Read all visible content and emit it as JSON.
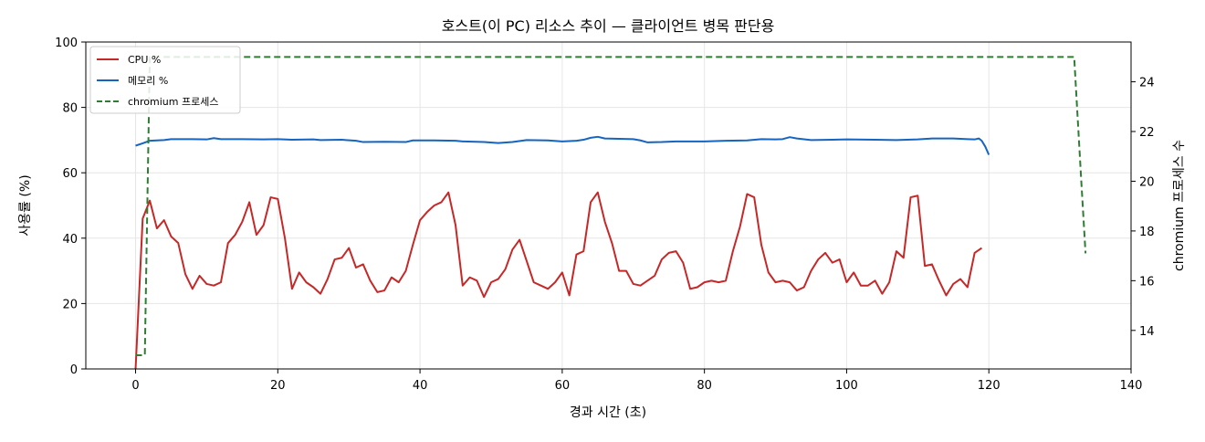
{
  "chart_data": {
    "type": "line",
    "title": "호스트(이 PC) 리소스 추이 — 클라이언트 병목 판단용",
    "xlabel": "경과 시간 (초)",
    "ylabel": "사용률 (%)",
    "y2label": "chromium 프로세스 수",
    "xlim": [
      -7,
      140
    ],
    "ylim": [
      0,
      100
    ],
    "y2lim": [
      12.45,
      25.6
    ],
    "xticks": [
      "0",
      "20",
      "40",
      "60",
      "80",
      "100",
      "120",
      "140"
    ],
    "yticks": [
      "0",
      "20",
      "40",
      "60",
      "80",
      "100"
    ],
    "y2ticks": [
      "14",
      "16",
      "18",
      "20",
      "22",
      "24"
    ],
    "grid": true,
    "legend_position": "top-left",
    "series": [
      {
        "name": "CPU %",
        "axis": "left",
        "color": "#c62828",
        "style": "solid",
        "points": [
          [
            0,
            0
          ],
          [
            1,
            46
          ],
          [
            2,
            51.5
          ],
          [
            3,
            43
          ],
          [
            4,
            45.5
          ],
          [
            5,
            40.5
          ],
          [
            6,
            38.5
          ],
          [
            7,
            29
          ],
          [
            8,
            24.5
          ],
          [
            9,
            28.5
          ],
          [
            10,
            26
          ],
          [
            11,
            25.5
          ],
          [
            12,
            26.5
          ],
          [
            13,
            38.5
          ],
          [
            14,
            41
          ],
          [
            15,
            45
          ],
          [
            16,
            51
          ],
          [
            17,
            41
          ],
          [
            18,
            44
          ],
          [
            19,
            52.5
          ],
          [
            20,
            52
          ],
          [
            21,
            40
          ],
          [
            22,
            24.5
          ],
          [
            23,
            29.5
          ],
          [
            24,
            26.5
          ],
          [
            25,
            25
          ],
          [
            26,
            23
          ],
          [
            27,
            27.5
          ],
          [
            28,
            33.5
          ],
          [
            29,
            34
          ],
          [
            30,
            37
          ],
          [
            31,
            31
          ],
          [
            32,
            32
          ],
          [
            33,
            27
          ],
          [
            34,
            23.5
          ],
          [
            35,
            24
          ],
          [
            36,
            28
          ],
          [
            37,
            26.5
          ],
          [
            38,
            30
          ],
          [
            39,
            38
          ],
          [
            40,
            45.5
          ],
          [
            41,
            48
          ],
          [
            42,
            50
          ],
          [
            43,
            51
          ],
          [
            44,
            54
          ],
          [
            45,
            44
          ],
          [
            46,
            25.5
          ],
          [
            47,
            28
          ],
          [
            48,
            27
          ],
          [
            49,
            22
          ],
          [
            50,
            26.5
          ],
          [
            51,
            27.5
          ],
          [
            52,
            30.5
          ],
          [
            53,
            36.5
          ],
          [
            54,
            39.5
          ],
          [
            55,
            33
          ],
          [
            56,
            26.5
          ],
          [
            57,
            25.5
          ],
          [
            58,
            24.5
          ],
          [
            59,
            26.5
          ],
          [
            60,
            29.5
          ],
          [
            61,
            22.5
          ],
          [
            62,
            35
          ],
          [
            63,
            36
          ],
          [
            64,
            51
          ],
          [
            65,
            54
          ],
          [
            66,
            45
          ],
          [
            67,
            38.5
          ],
          [
            68,
            30
          ],
          [
            69,
            30
          ],
          [
            70,
            26
          ],
          [
            71,
            25.5
          ],
          [
            72,
            27
          ],
          [
            73,
            28.5
          ],
          [
            74,
            33.5
          ],
          [
            75,
            35.5
          ],
          [
            76,
            36
          ],
          [
            77,
            32.5
          ],
          [
            78,
            24.5
          ],
          [
            79,
            25
          ],
          [
            80,
            26.5
          ],
          [
            81,
            27
          ],
          [
            82,
            26.5
          ],
          [
            83,
            27
          ],
          [
            84,
            36
          ],
          [
            85,
            43.5
          ],
          [
            86,
            53.5
          ],
          [
            87,
            52.5
          ],
          [
            88,
            38
          ],
          [
            89,
            29.5
          ],
          [
            90,
            26.5
          ],
          [
            91,
            27
          ],
          [
            92,
            26.5
          ],
          [
            93,
            24
          ],
          [
            94,
            25
          ],
          [
            95,
            30
          ],
          [
            96,
            33.5
          ],
          [
            97,
            35.5
          ],
          [
            98,
            32.5
          ],
          [
            99,
            33.5
          ],
          [
            100,
            26.5
          ],
          [
            101,
            29.5
          ],
          [
            102,
            25.5
          ],
          [
            103,
            25.5
          ],
          [
            104,
            27
          ],
          [
            105,
            23
          ],
          [
            106,
            26.5
          ],
          [
            107,
            36
          ],
          [
            108,
            34
          ],
          [
            109,
            52.5
          ],
          [
            110,
            53
          ],
          [
            111,
            31.5
          ],
          [
            112,
            32
          ],
          [
            113,
            27
          ],
          [
            114,
            22.5
          ],
          [
            115,
            26
          ],
          [
            116,
            27.5
          ],
          [
            117,
            25
          ],
          [
            118,
            35.5
          ],
          [
            119,
            37
          ]
        ]
      },
      {
        "name": "메모리 %",
        "axis": "left",
        "color": "#1565c0",
        "style": "solid",
        "points": [
          [
            0,
            68.3
          ],
          [
            1,
            69
          ],
          [
            2,
            69.8
          ],
          [
            4,
            70
          ],
          [
            5,
            70.3
          ],
          [
            8,
            70.3
          ],
          [
            10,
            70.2
          ],
          [
            11,
            70.6
          ],
          [
            12,
            70.3
          ],
          [
            15,
            70.3
          ],
          [
            18,
            70.2
          ],
          [
            20,
            70.3
          ],
          [
            22,
            70.1
          ],
          [
            25,
            70.2
          ],
          [
            26,
            70
          ],
          [
            29,
            70.1
          ],
          [
            31,
            69.8
          ],
          [
            32,
            69.4
          ],
          [
            35,
            69.5
          ],
          [
            38,
            69.4
          ],
          [
            39,
            69.9
          ],
          [
            42,
            69.9
          ],
          [
            45,
            69.8
          ],
          [
            46,
            69.6
          ],
          [
            49,
            69.4
          ],
          [
            51,
            69.1
          ],
          [
            53,
            69.4
          ],
          [
            55,
            70
          ],
          [
            58,
            69.9
          ],
          [
            60,
            69.6
          ],
          [
            62,
            69.8
          ],
          [
            63,
            70.1
          ],
          [
            64,
            70.7
          ],
          [
            65,
            71
          ],
          [
            66,
            70.5
          ],
          [
            70,
            70.3
          ],
          [
            71,
            69.9
          ],
          [
            72,
            69.3
          ],
          [
            74,
            69.4
          ],
          [
            76,
            69.6
          ],
          [
            80,
            69.6
          ],
          [
            83,
            69.8
          ],
          [
            86,
            69.9
          ],
          [
            88,
            70.3
          ],
          [
            90,
            70.2
          ],
          [
            91,
            70.3
          ],
          [
            92,
            70.9
          ],
          [
            93,
            70.5
          ],
          [
            95,
            70
          ],
          [
            98,
            70.1
          ],
          [
            100,
            70.2
          ],
          [
            104,
            70.1
          ],
          [
            107,
            70
          ],
          [
            110,
            70.2
          ],
          [
            112,
            70.5
          ],
          [
            115,
            70.5
          ],
          [
            117,
            70.3
          ],
          [
            118,
            70.2
          ],
          [
            118.6,
            70.5
          ],
          [
            119,
            69.8
          ],
          [
            119.5,
            68
          ],
          [
            120,
            65.5
          ]
        ]
      },
      {
        "name": "chromium 프로세스",
        "axis": "right",
        "color": "#2e7d32",
        "style": "dashed",
        "points": [
          [
            0,
            13
          ],
          [
            1.3,
            13
          ],
          [
            2,
            25
          ],
          [
            132,
            25
          ],
          [
            133,
            20
          ],
          [
            133.6,
            17.1
          ]
        ]
      }
    ]
  }
}
